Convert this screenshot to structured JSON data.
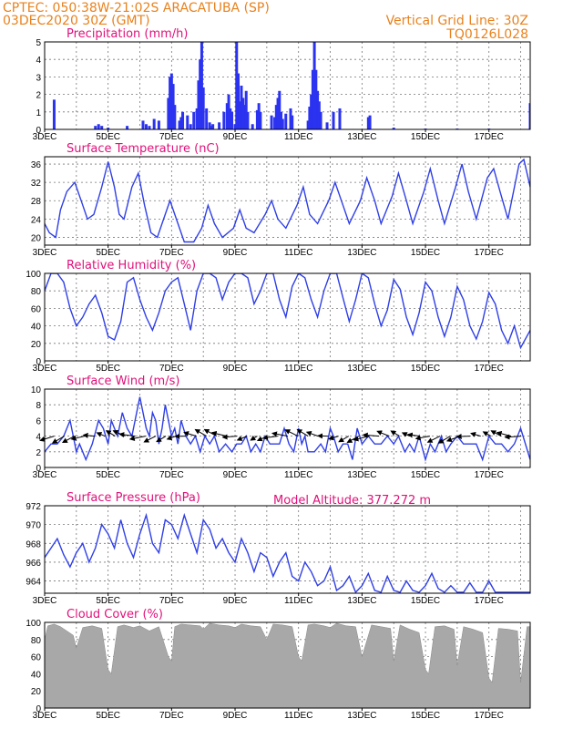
{
  "header": {
    "left_line1": "CPTEC:   050:38W-21:02S   ARACATUBA (SP)",
    "left_line2": "03DEC2020 30Z (GMT)",
    "right_line1": "Vertical Grid Line: 30Z",
    "right_line2": "TQ0126L028",
    "altitude": "Model Altitude: 377.272 m"
  },
  "colors": {
    "line": "#2f3fe6",
    "bar": "#2b33f0",
    "cloud": "#a8a8a8",
    "title": "#e0117a",
    "header": "#e8821e"
  },
  "x_axis": {
    "day_range": [
      3,
      18.3
    ],
    "labels": [
      {
        "day": 3,
        "text": "3DEC"
      },
      {
        "day": 5,
        "text": "5DEC"
      },
      {
        "day": 7,
        "text": "7DEC"
      },
      {
        "day": 9,
        "text": "9DEC"
      },
      {
        "day": 11,
        "text": "11DEC"
      },
      {
        "day": 13,
        "text": "13DEC"
      },
      {
        "day": 15,
        "text": "15DEC"
      },
      {
        "day": 17,
        "text": "17DEC"
      }
    ]
  },
  "chart_data": [
    {
      "id": "precip",
      "type": "bar",
      "title": "Precipitation (mm/h)",
      "ylim": [
        0,
        5
      ],
      "yticks": [
        0,
        1,
        2,
        3,
        4,
        5
      ],
      "x": [
        3.3,
        4.6,
        4.7,
        4.8,
        5.0,
        5.6,
        6.1,
        6.2,
        6.3,
        6.45,
        6.6,
        6.9,
        6.95,
        7.0,
        7.05,
        7.1,
        7.25,
        7.3,
        7.35,
        7.5,
        7.6,
        7.7,
        7.8,
        7.85,
        7.9,
        7.95,
        8.0,
        8.1,
        8.2,
        8.25,
        8.3,
        8.5,
        8.65,
        8.75,
        8.8,
        8.85,
        8.9,
        9.0,
        9.05,
        9.1,
        9.15,
        9.2,
        9.25,
        9.3,
        9.35,
        9.4,
        9.55,
        9.7,
        9.75,
        9.8,
        10.15,
        10.25,
        10.3,
        10.35,
        10.4,
        10.45,
        10.5,
        10.6,
        10.75,
        10.8,
        11.3,
        11.35,
        11.4,
        11.45,
        11.5,
        11.55,
        11.6,
        11.65,
        11.7,
        11.9,
        12.1,
        12.3,
        13.2,
        13.25,
        14.0,
        15.0,
        16.0,
        17.0,
        18.3
      ],
      "values": [
        1.7,
        0.2,
        0.3,
        0.2,
        0.1,
        0.2,
        0.5,
        0.3,
        0.2,
        0.6,
        0.5,
        1.8,
        3.0,
        3.2,
        2.6,
        1.4,
        0.5,
        0.7,
        1.0,
        0.8,
        0.3,
        1.0,
        1.2,
        2.8,
        4.0,
        5.0,
        2.4,
        1.2,
        0.4,
        0.2,
        0.3,
        0.4,
        1.0,
        1.5,
        2.0,
        1.2,
        1.0,
        0.3,
        5.0,
        3.2,
        1.6,
        2.5,
        1.8,
        1.4,
        2.2,
        1.0,
        0.3,
        1.1,
        1.5,
        1.0,
        0.8,
        0.7,
        1.4,
        1.8,
        2.2,
        1.0,
        0.6,
        0.9,
        1.2,
        0.8,
        0.5,
        1.3,
        2.0,
        3.4,
        5.0,
        3.4,
        2.2,
        1.6,
        1.0,
        0.4,
        1.0,
        1.2,
        0.7,
        0.8,
        0.1,
        0.05,
        0.05,
        0.05,
        1.5
      ]
    },
    {
      "id": "temp",
      "type": "line",
      "title": "Surface Temperature (nC)",
      "ylim": [
        18.3,
        37.6
      ],
      "yticks": [
        20,
        24,
        28,
        32,
        36
      ],
      "x": [
        3.0,
        3.15,
        3.35,
        3.5,
        3.7,
        3.95,
        4.15,
        4.35,
        4.55,
        4.8,
        5.0,
        5.2,
        5.35,
        5.5,
        5.75,
        5.95,
        6.15,
        6.35,
        6.55,
        6.75,
        6.95,
        7.15,
        7.4,
        7.7,
        7.95,
        8.15,
        8.35,
        8.6,
        8.95,
        9.15,
        9.35,
        9.6,
        9.95,
        10.15,
        10.35,
        10.6,
        10.95,
        11.15,
        11.35,
        11.6,
        11.95,
        12.15,
        12.4,
        12.6,
        12.95,
        13.15,
        13.4,
        13.6,
        13.95,
        14.15,
        14.4,
        14.6,
        14.95,
        15.15,
        15.4,
        15.6,
        15.95,
        16.15,
        16.35,
        16.6,
        16.95,
        17.15,
        17.35,
        17.6,
        17.95,
        18.1,
        18.3
      ],
      "values": [
        23,
        21,
        20,
        26,
        30,
        32,
        28,
        24,
        25,
        31,
        36.5,
        31,
        25,
        24,
        31,
        34,
        27,
        21,
        20,
        24,
        28,
        24,
        19,
        19,
        22,
        27,
        23,
        20,
        22,
        26,
        22,
        21,
        25,
        28,
        24,
        22,
        27,
        31,
        25,
        23,
        28,
        32,
        27,
        23,
        28,
        33,
        28,
        23,
        29,
        34,
        28,
        23,
        30,
        35,
        28,
        23,
        31,
        36,
        30,
        24,
        33,
        35,
        30,
        24,
        36,
        37,
        31
      ]
    },
    {
      "id": "rh",
      "type": "line",
      "title": "Relative Humidity (%)",
      "ylim": [
        0,
        100
      ],
      "yticks": [
        0,
        20,
        40,
        60,
        80,
        100
      ],
      "x": [
        3.0,
        3.2,
        3.4,
        3.6,
        3.8,
        4.0,
        4.2,
        4.4,
        4.6,
        4.8,
        5.0,
        5.2,
        5.4,
        5.6,
        5.8,
        6.0,
        6.2,
        6.4,
        6.6,
        6.8,
        7.0,
        7.2,
        7.4,
        7.6,
        7.8,
        8.0,
        8.2,
        8.4,
        8.6,
        8.8,
        9.0,
        9.2,
        9.4,
        9.6,
        9.8,
        10.0,
        10.2,
        10.4,
        10.6,
        10.8,
        11.0,
        11.2,
        11.4,
        11.6,
        11.8,
        12.0,
        12.2,
        12.4,
        12.6,
        12.8,
        13.0,
        13.2,
        13.4,
        13.6,
        13.8,
        14.0,
        14.2,
        14.4,
        14.6,
        14.8,
        15.0,
        15.2,
        15.4,
        15.6,
        15.8,
        16.0,
        16.2,
        16.4,
        16.6,
        16.8,
        17.0,
        17.2,
        17.4,
        17.6,
        17.8,
        18.0,
        18.3
      ],
      "values": [
        80,
        100,
        100,
        90,
        60,
        40,
        50,
        65,
        75,
        55,
        28,
        24,
        45,
        90,
        95,
        70,
        50,
        35,
        55,
        80,
        90,
        95,
        65,
        35,
        80,
        100,
        100,
        95,
        70,
        90,
        100,
        100,
        95,
        65,
        80,
        100,
        100,
        70,
        50,
        85,
        100,
        95,
        70,
        50,
        80,
        100,
        100,
        72,
        45,
        70,
        100,
        95,
        65,
        40,
        58,
        93,
        82,
        50,
        30,
        55,
        90,
        80,
        50,
        28,
        50,
        85,
        70,
        40,
        25,
        45,
        78,
        65,
        35,
        20,
        40,
        15,
        35
      ]
    },
    {
      "id": "wind",
      "type": "line",
      "title": "Surface Wind (m/s)",
      "ylim": [
        0,
        10
      ],
      "yticks": [
        0,
        2,
        4,
        6,
        8,
        10
      ],
      "x": [
        3.0,
        3.2,
        3.4,
        3.6,
        3.8,
        3.9,
        4.0,
        4.1,
        4.2,
        4.3,
        4.5,
        4.7,
        4.85,
        5.0,
        5.1,
        5.2,
        5.3,
        5.45,
        5.6,
        5.75,
        5.9,
        6.0,
        6.1,
        6.2,
        6.3,
        6.4,
        6.5,
        6.6,
        6.7,
        6.8,
        6.9,
        7.0,
        7.1,
        7.2,
        7.3,
        7.45,
        7.6,
        7.75,
        7.9,
        8.05,
        8.2,
        8.35,
        8.5,
        8.7,
        8.9,
        9.05,
        9.2,
        9.35,
        9.5,
        9.65,
        9.8,
        9.95,
        10.1,
        10.25,
        10.4,
        10.55,
        10.7,
        10.85,
        11.0,
        11.1,
        11.2,
        11.3,
        11.5,
        11.7,
        11.85,
        12.0,
        12.1,
        12.25,
        12.4,
        12.55,
        12.7,
        12.85,
        13.0,
        13.2,
        13.4,
        13.6,
        13.8,
        14.0,
        14.15,
        14.35,
        14.5,
        14.65,
        14.8,
        15.0,
        15.15,
        15.3,
        15.5,
        15.65,
        15.8,
        16.0,
        16.2,
        16.4,
        16.6,
        16.8,
        17.0,
        17.2,
        17.4,
        17.6,
        17.8,
        18.0,
        18.3
      ],
      "values": [
        2,
        3,
        3,
        4,
        6,
        4,
        2,
        3,
        2,
        1,
        3,
        6,
        5,
        3,
        6,
        5,
        4,
        7,
        5,
        4,
        7,
        9,
        7,
        5,
        4,
        7,
        6,
        3,
        5,
        8,
        6,
        4,
        5,
        3,
        6,
        4,
        3,
        4,
        2,
        4,
        3,
        4,
        2,
        3,
        2,
        3,
        3,
        4,
        2,
        3,
        2,
        4,
        3,
        3,
        3,
        5,
        3,
        2,
        5,
        3,
        4,
        2,
        2,
        3,
        2,
        5,
        4,
        2,
        3,
        3,
        1,
        5,
        3,
        4,
        3,
        3,
        4,
        3,
        4,
        2,
        3,
        2,
        4,
        1,
        3,
        2,
        4,
        2,
        3,
        4,
        3,
        3,
        3,
        1,
        4,
        3,
        3,
        2,
        3,
        5,
        1
      ]
    },
    {
      "id": "pres",
      "type": "line",
      "title": "Surface Pressure (hPa)",
      "ylim": [
        962.7,
        972
      ],
      "yticks": [
        964,
        966,
        968,
        970,
        972
      ],
      "x": [
        3.0,
        3.2,
        3.4,
        3.6,
        3.8,
        4.0,
        4.2,
        4.4,
        4.6,
        4.8,
        5.0,
        5.2,
        5.4,
        5.6,
        5.8,
        6.0,
        6.2,
        6.4,
        6.6,
        6.8,
        7.0,
        7.2,
        7.4,
        7.6,
        7.8,
        8.0,
        8.2,
        8.4,
        8.6,
        8.8,
        9.0,
        9.2,
        9.4,
        9.6,
        9.8,
        10.0,
        10.2,
        10.4,
        10.6,
        10.8,
        11.0,
        11.2,
        11.4,
        11.6,
        11.8,
        12.0,
        12.2,
        12.4,
        12.6,
        12.8,
        13.0,
        13.2,
        13.4,
        13.6,
        13.8,
        14.0,
        14.2,
        14.4,
        14.6,
        14.8,
        15.0,
        15.2,
        15.4,
        15.6,
        15.8,
        16.0,
        16.2,
        16.4,
        16.6,
        16.8,
        17.0,
        17.2,
        17.4,
        17.6,
        17.8,
        18.0,
        18.3
      ],
      "values": [
        966.5,
        967.5,
        968.5,
        966.8,
        965.5,
        967,
        968,
        966,
        967.5,
        970,
        969,
        967.5,
        970.5,
        968,
        966.5,
        969,
        971,
        968,
        967,
        970.5,
        970,
        968.5,
        971,
        969,
        967,
        970.5,
        969.5,
        967.5,
        968.5,
        967,
        966,
        968.5,
        967,
        965,
        967,
        966.5,
        964.5,
        966,
        967,
        964.5,
        964,
        966,
        965,
        963.5,
        964,
        965.5,
        963,
        963.5,
        964.5,
        962.8,
        963.5,
        964.8,
        963,
        962.8,
        964.5,
        963,
        962.8,
        964,
        963,
        962.8,
        963.5,
        964.8,
        963.2,
        962.8,
        963.5,
        962.8,
        962.8,
        963.8,
        962.8,
        962.8,
        964,
        962.8,
        962.8,
        962.8,
        962.8,
        962.8,
        962.8
      ]
    },
    {
      "id": "cloud",
      "type": "area",
      "title": "Cloud Cover (%)",
      "ylim": [
        0,
        100
      ],
      "yticks": [
        0,
        20,
        40,
        60,
        80,
        100
      ],
      "x": [
        3.0,
        3.1,
        3.3,
        3.5,
        3.7,
        3.9,
        4.0,
        4.2,
        4.5,
        4.8,
        5.0,
        5.1,
        5.3,
        5.5,
        5.8,
        6.0,
        6.3,
        6.6,
        6.9,
        7.0,
        7.1,
        7.3,
        7.6,
        7.9,
        8.0,
        8.2,
        8.5,
        8.8,
        9.0,
        9.2,
        9.5,
        9.8,
        10.0,
        10.2,
        10.5,
        10.8,
        11.0,
        11.1,
        11.3,
        11.5,
        11.8,
        12.0,
        12.2,
        12.5,
        12.8,
        13.0,
        13.3,
        13.6,
        13.9,
        14.0,
        14.2,
        14.5,
        14.8,
        15.0,
        15.1,
        15.3,
        15.6,
        15.9,
        16.0,
        16.2,
        16.5,
        16.8,
        17.0,
        17.1,
        17.3,
        17.6,
        17.9,
        18.0,
        18.2,
        18.3
      ],
      "values": [
        80,
        96,
        98,
        95,
        90,
        85,
        70,
        94,
        96,
        93,
        45,
        40,
        95,
        97,
        94,
        96,
        90,
        95,
        60,
        55,
        95,
        98,
        97,
        96,
        92,
        99,
        97,
        96,
        94,
        98,
        96,
        95,
        80,
        98,
        97,
        95,
        60,
        55,
        97,
        98,
        96,
        94,
        99,
        96,
        95,
        60,
        97,
        95,
        93,
        55,
        97,
        92,
        88,
        45,
        40,
        95,
        96,
        92,
        50,
        95,
        92,
        88,
        35,
        30,
        93,
        92,
        90,
        30,
        95,
        95
      ]
    }
  ]
}
